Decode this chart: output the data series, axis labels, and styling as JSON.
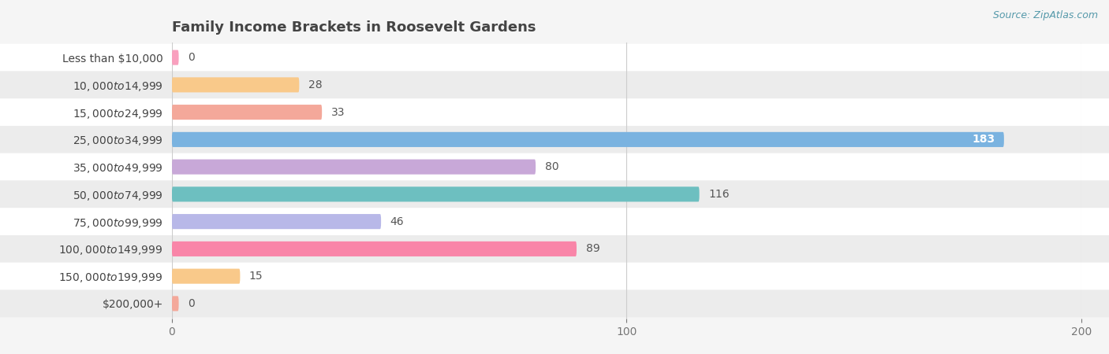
{
  "title": "Family Income Brackets in Roosevelt Gardens",
  "source": "Source: ZipAtlas.com",
  "categories": [
    "Less than $10,000",
    "$10,000 to $14,999",
    "$15,000 to $24,999",
    "$25,000 to $34,999",
    "$35,000 to $49,999",
    "$50,000 to $74,999",
    "$75,000 to $99,999",
    "$100,000 to $149,999",
    "$150,000 to $199,999",
    "$200,000+"
  ],
  "values": [
    0,
    28,
    33,
    183,
    80,
    116,
    46,
    89,
    15,
    0
  ],
  "bar_colors": [
    "#f9a0be",
    "#f9c98a",
    "#f4a89a",
    "#7ab3e0",
    "#c8a8d8",
    "#6dbfc0",
    "#b8b8e8",
    "#f985a8",
    "#f9c98a",
    "#f4a89a"
  ],
  "background_color": "#f5f5f5",
  "row_odd_color": "#ffffff",
  "row_even_color": "#ececec",
  "xlim": [
    0,
    200
  ],
  "xticks": [
    0,
    100,
    200
  ],
  "title_fontsize": 13,
  "label_fontsize": 10,
  "value_fontsize": 10
}
